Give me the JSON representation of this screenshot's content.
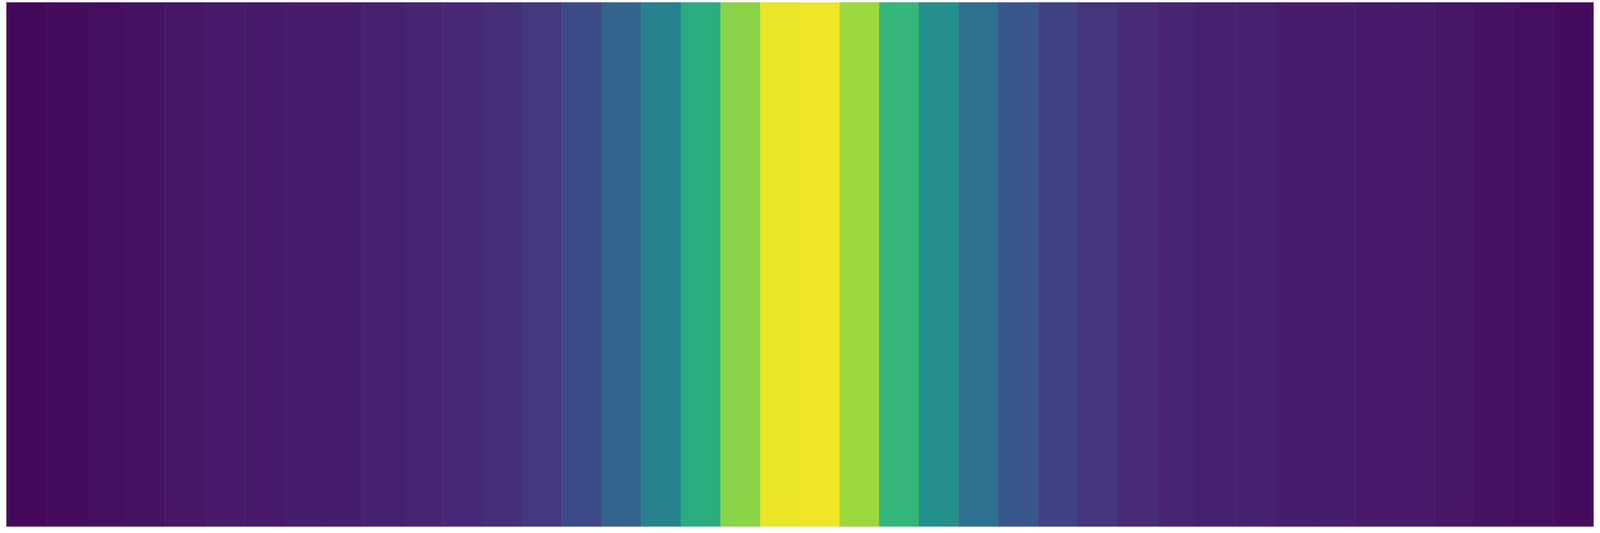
{
  "chart_data": {
    "type": "heatmap",
    "categories": [
      null,
      null,
      null,
      null,
      null,
      null,
      null,
      null,
      null,
      null,
      null,
      null,
      null,
      null,
      null,
      null,
      null,
      null,
      null,
      null,
      null,
      null,
      null,
      null,
      null,
      null,
      null,
      null,
      null,
      null,
      null,
      null,
      null,
      null,
      null,
      null,
      null,
      null,
      null,
      null
    ],
    "values": [
      0.02,
      0.03,
      0.04,
      0.05,
      0.06,
      0.07,
      0.07,
      0.08,
      0.08,
      0.09,
      0.1,
      0.11,
      0.13,
      0.17,
      0.23,
      0.32,
      0.45,
      0.62,
      0.82,
      0.97,
      0.98,
      0.85,
      0.66,
      0.5,
      0.37,
      0.27,
      0.2,
      0.15,
      0.12,
      0.1,
      0.09,
      0.09,
      0.08,
      0.08,
      0.07,
      0.07,
      0.06,
      0.05,
      0.04,
      0.03
    ],
    "color_range": [
      0,
      1
    ],
    "color": "viridis",
    "tick_labels": false
  }
}
